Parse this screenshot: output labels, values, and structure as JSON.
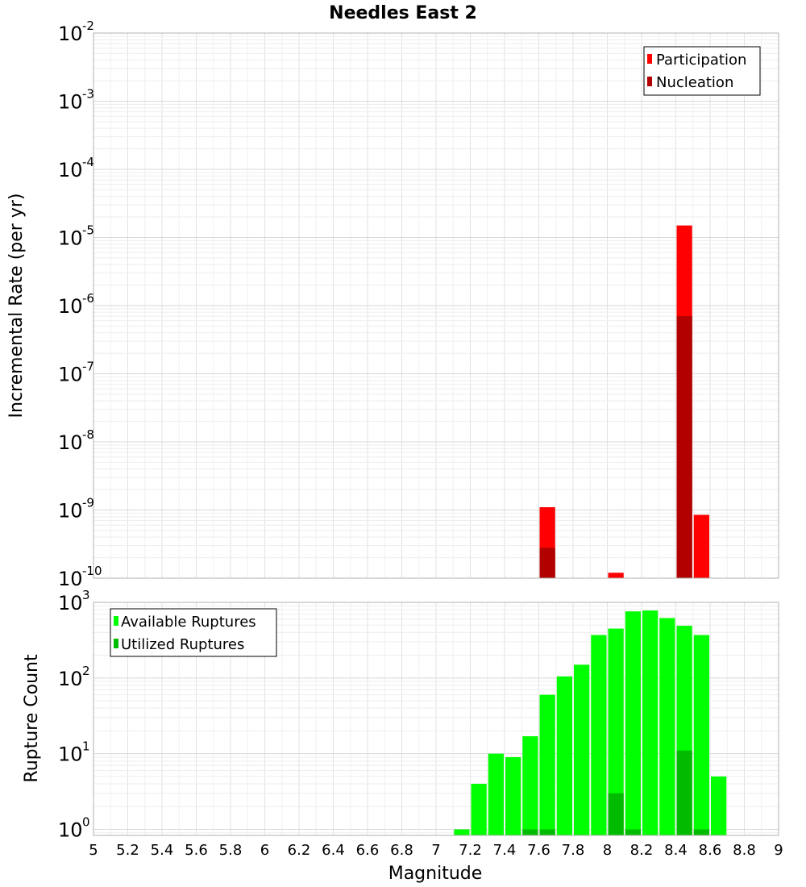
{
  "chart_data": [
    {
      "type": "bar",
      "title": "Needles East 2",
      "xlabel": "Magnitude",
      "ylabel": "Incremental Rate (per yr)",
      "yscale": "log",
      "xlim": [
        5,
        9
      ],
      "ylim_exponents": [
        -10,
        -2
      ],
      "bin_width": 0.1,
      "ytick_base": "10",
      "ytick_exponents": [
        "-2",
        "-3",
        "-4",
        "-5",
        "-6",
        "-7",
        "-8",
        "-9",
        "-10"
      ],
      "legend": {
        "position": "top-right",
        "entries": [
          "Participation",
          "Nucleation"
        ]
      },
      "colors": {
        "Participation": "#ff0000",
        "Nucleation": "#b20000"
      },
      "series": [
        {
          "name": "Participation",
          "x": [
            7.65,
            8.05,
            8.45,
            8.55
          ],
          "values": [
            1.1e-09,
            1.2e-10,
            1.5e-05,
            8.5e-10
          ]
        },
        {
          "name": "Nucleation",
          "x": [
            7.65,
            8.45
          ],
          "values": [
            2.8e-10,
            7e-07
          ]
        }
      ]
    },
    {
      "type": "bar",
      "xlabel": "Magnitude",
      "ylabel": "Rupture Count",
      "yscale": "log",
      "xlim": [
        5,
        9
      ],
      "ylim_exponents": [
        -0.08,
        3
      ],
      "bin_width": 0.1,
      "ytick_base": "10",
      "ytick_exponents": [
        "3",
        "2",
        "1",
        "0"
      ],
      "xticks": [
        "5",
        "5.2",
        "5.4",
        "5.6",
        "5.8",
        "6",
        "6.2",
        "6.4",
        "6.6",
        "6.8",
        "7",
        "7.2",
        "7.4",
        "7.6",
        "7.8",
        "8",
        "8.2",
        "8.4",
        "8.6",
        "8.8",
        "9"
      ],
      "legend": {
        "position": "top-left",
        "entries": [
          "Available Ruptures",
          "Utilized Ruptures"
        ]
      },
      "colors": {
        "Available Ruptures": "#00ff00",
        "Utilized Ruptures": "#00bb00"
      },
      "series": [
        {
          "name": "Available Ruptures",
          "x": [
            7.15,
            7.25,
            7.35,
            7.45,
            7.55,
            7.65,
            7.75,
            7.85,
            7.95,
            8.05,
            8.15,
            8.25,
            8.35,
            8.45,
            8.55,
            8.65
          ],
          "values": [
            1,
            4,
            10,
            9,
            17,
            60,
            105,
            150,
            370,
            450,
            760,
            780,
            620,
            490,
            370,
            5
          ]
        },
        {
          "name": "Utilized Ruptures",
          "x": [
            7.55,
            7.65,
            8.05,
            8.15,
            8.45,
            8.55
          ],
          "values": [
            1,
            1,
            3,
            1,
            11,
            1
          ]
        }
      ]
    }
  ]
}
